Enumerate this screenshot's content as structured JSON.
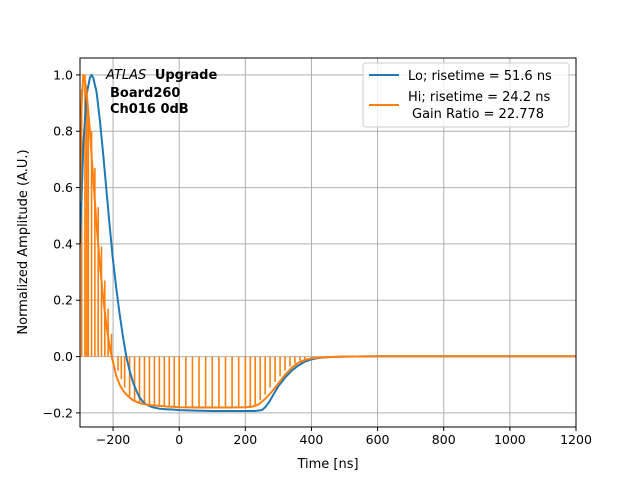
{
  "chart_data": {
    "type": "line",
    "xlabel": "Time [ns]",
    "ylabel": "Normalized Amplitude (A.U.)",
    "xlim": [
      -300,
      1200
    ],
    "ylim": [
      -0.25,
      1.06
    ],
    "xticks": [
      -200,
      0,
      200,
      400,
      600,
      800,
      1000,
      1200
    ],
    "xtick_labels": [
      "−200",
      "0",
      "200",
      "400",
      "600",
      "800",
      "1000",
      "1200"
    ],
    "yticks": [
      -0.2,
      0.0,
      0.2,
      0.4,
      0.6,
      0.8,
      1.0
    ],
    "ytick_labels": [
      "−0.2",
      "0.0",
      "0.2",
      "0.4",
      "0.6",
      "0.8",
      "1.0"
    ],
    "grid": true,
    "legend_position": "top-right",
    "annotation": {
      "italic": "ATLAS",
      "bold": "Upgrade",
      "line2": "Board260",
      "line3": "Ch016 0dB"
    },
    "series": [
      {
        "name": "Lo; risetime = 51.6 ns",
        "color": "#1f77b4",
        "style": "line",
        "x": [
          -300,
          -290,
          -280,
          -270,
          -265,
          -260,
          -250,
          -240,
          -230,
          -220,
          -210,
          -200,
          -190,
          -180,
          -170,
          -160,
          -150,
          -140,
          -130,
          -120,
          -110,
          -100,
          -80,
          -60,
          -40,
          -20,
          0,
          50,
          100,
          150,
          200,
          230,
          250,
          260,
          270,
          280,
          290,
          300,
          320,
          340,
          360,
          380,
          400,
          420,
          450,
          500,
          600,
          800,
          1000,
          1200
        ],
        "y": [
          0.4,
          0.75,
          0.93,
          0.99,
          1.0,
          0.99,
          0.94,
          0.84,
          0.72,
          0.59,
          0.46,
          0.34,
          0.24,
          0.15,
          0.07,
          0.0,
          -0.05,
          -0.09,
          -0.12,
          -0.145,
          -0.16,
          -0.17,
          -0.18,
          -0.185,
          -0.187,
          -0.188,
          -0.19,
          -0.192,
          -0.193,
          -0.193,
          -0.193,
          -0.193,
          -0.19,
          -0.18,
          -0.165,
          -0.145,
          -0.125,
          -0.105,
          -0.075,
          -0.05,
          -0.032,
          -0.018,
          -0.01,
          -0.005,
          -0.002,
          0.0,
          0.001,
          0.001,
          0.001,
          0.001
        ]
      },
      {
        "name": "Hi; risetime = 24.2 ns",
        "name_line2": "Gain Ratio = 22.778",
        "color": "#ff7f0e",
        "style": "line",
        "x": [
          -300,
          -295,
          -290,
          -285,
          -280,
          -270,
          -260,
          -250,
          -240,
          -230,
          -220,
          -210,
          -200,
          -190,
          -180,
          -170,
          -160,
          -150,
          -140,
          -130,
          -120,
          -110,
          -100,
          -80,
          -60,
          -40,
          -20,
          0,
          50,
          100,
          150,
          200,
          220,
          240,
          260,
          280,
          300,
          320,
          340,
          360,
          380,
          400,
          450,
          500,
          600,
          800,
          1000,
          1200
        ],
        "y": [
          0.55,
          0.9,
          1.0,
          0.98,
          0.94,
          0.8,
          0.63,
          0.47,
          0.33,
          0.21,
          0.11,
          0.03,
          -0.02,
          -0.07,
          -0.1,
          -0.12,
          -0.135,
          -0.145,
          -0.155,
          -0.16,
          -0.165,
          -0.168,
          -0.17,
          -0.173,
          -0.175,
          -0.177,
          -0.178,
          -0.18,
          -0.181,
          -0.181,
          -0.181,
          -0.18,
          -0.178,
          -0.17,
          -0.15,
          -0.125,
          -0.095,
          -0.065,
          -0.04,
          -0.022,
          -0.012,
          -0.006,
          -0.002,
          0.0,
          0.001,
          0.001,
          0.001,
          0.001
        ]
      },
      {
        "name": "",
        "color": "#ff7f0e",
        "style": "stems",
        "x": [
          -295,
          -285,
          -280,
          -275,
          -265,
          -255,
          -245,
          -235,
          -225,
          -215,
          -205,
          -195,
          -185,
          -175,
          -165,
          -150,
          -135,
          -120,
          -105,
          -90,
          -75,
          -60,
          -45,
          -30,
          -15,
          0,
          20,
          40,
          60,
          80,
          100,
          120,
          140,
          160,
          180,
          200,
          215,
          230,
          245,
          260,
          275,
          290,
          305,
          320,
          335,
          350,
          365,
          380
        ],
        "y": [
          0.95,
          1.0,
          0.96,
          0.88,
          0.8,
          0.67,
          0.53,
          0.39,
          0.27,
          0.17,
          0.08,
          0.0,
          -0.05,
          -0.08,
          -0.11,
          -0.14,
          -0.155,
          -0.163,
          -0.167,
          -0.17,
          -0.172,
          -0.174,
          -0.176,
          -0.177,
          -0.178,
          -0.18,
          -0.181,
          -0.181,
          -0.181,
          -0.181,
          -0.181,
          -0.181,
          -0.181,
          -0.181,
          -0.18,
          -0.18,
          -0.178,
          -0.17,
          -0.155,
          -0.135,
          -0.11,
          -0.09,
          -0.07,
          -0.05,
          -0.035,
          -0.025,
          -0.015,
          -0.01
        ]
      }
    ]
  }
}
